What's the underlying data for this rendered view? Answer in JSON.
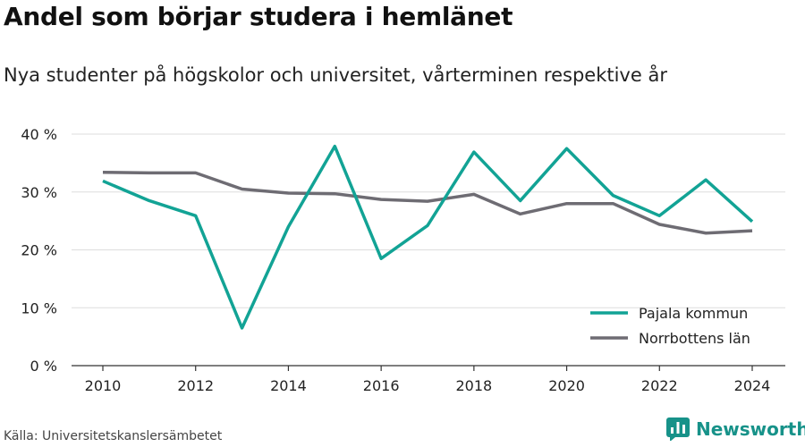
{
  "header": {
    "title": "Andel som börjar studera i hemlänet",
    "subtitle": "Nya studenter på högskolor och universitet, vårterminen respektive år"
  },
  "footer": {
    "source": "Källa: Universitetskanslersämbetet",
    "brand": "Newsworthy",
    "brand_icon": "bar-chart-logo-icon",
    "brand_color": "#179289"
  },
  "chart_data": {
    "type": "line",
    "x": [
      2010,
      2011,
      2012,
      2013,
      2014,
      2015,
      2016,
      2017,
      2018,
      2019,
      2020,
      2021,
      2022,
      2023,
      2024
    ],
    "x_ticks": [
      2010,
      2012,
      2014,
      2016,
      2018,
      2020,
      2022,
      2024
    ],
    "x_tick_labels": [
      "2010",
      "2012",
      "2014",
      "2016",
      "2018",
      "2020",
      "2022",
      "2024"
    ],
    "y_ticks": [
      0,
      10,
      20,
      30,
      40
    ],
    "y_tick_labels": [
      "0 %",
      "10 %",
      "20 %",
      "30 %",
      "40 %"
    ],
    "ylim": [
      0,
      40
    ],
    "xlim": [
      2010,
      2024
    ],
    "grid": true,
    "legend_position": "bottom-right",
    "series": [
      {
        "name": "Pajala kommun",
        "color": "#12a395",
        "values": [
          31.9,
          28.5,
          25.9,
          6.5,
          24.0,
          37.9,
          18.5,
          24.2,
          36.9,
          28.5,
          37.5,
          29.4,
          25.9,
          32.1,
          24.9
        ]
      },
      {
        "name": "Norrbottens län",
        "color": "#6e6c73",
        "values": [
          33.4,
          33.3,
          33.3,
          30.5,
          29.8,
          29.7,
          28.7,
          28.4,
          29.6,
          26.2,
          28.0,
          28.0,
          24.4,
          22.9,
          23.3
        ]
      }
    ]
  }
}
